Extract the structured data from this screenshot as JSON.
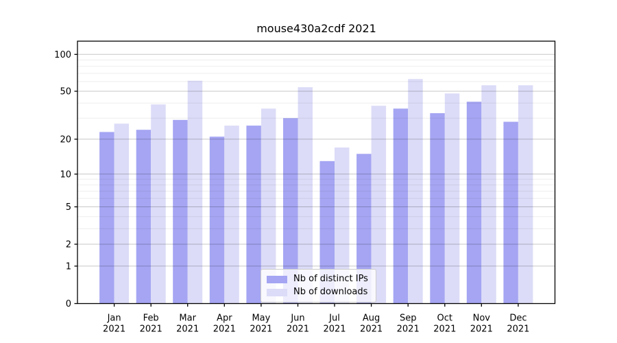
{
  "chart_data": {
    "type": "bar",
    "title": "mouse430a2cdf 2021",
    "categories": [
      "Jan",
      "Feb",
      "Mar",
      "Apr",
      "May",
      "Jun",
      "Jul",
      "Aug",
      "Sep",
      "Oct",
      "Nov",
      "Dec"
    ],
    "category_year": "2021",
    "series": [
      {
        "name": "Nb of distinct IPs",
        "color": "#a5a5f3",
        "values": [
          23,
          24,
          29,
          21,
          26,
          30,
          13,
          15,
          36,
          33,
          41,
          28
        ]
      },
      {
        "name": "Nb of downloads",
        "color": "#dcdcf8",
        "values": [
          27,
          39,
          61,
          26,
          36,
          54,
          17,
          38,
          63,
          48,
          56,
          56
        ]
      }
    ],
    "yscale": "log1p",
    "yticks": [
      0,
      1,
      2,
      5,
      10,
      20,
      50,
      100
    ],
    "minor_yticks": [
      3,
      4,
      6,
      7,
      8,
      9,
      30,
      40,
      60,
      70,
      80,
      90
    ],
    "ylim_top": 128,
    "grid": true,
    "legend_position": "bottom-center"
  }
}
